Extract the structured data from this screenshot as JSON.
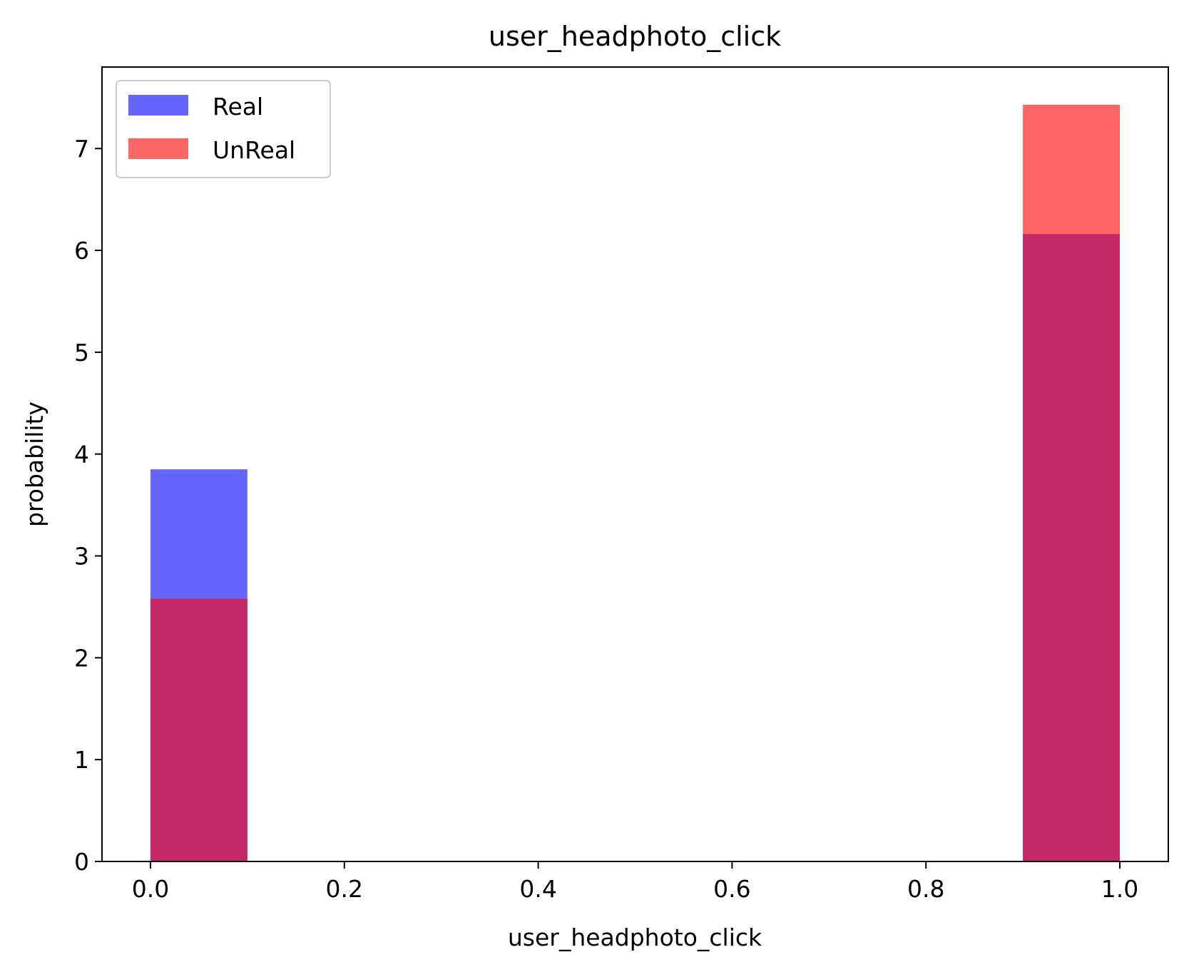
{
  "chart_data": {
    "type": "bar",
    "title": "user_headphoto_click",
    "xlabel": "user_headphoto_click",
    "ylabel": "probability",
    "xlim": [
      -0.05,
      1.05
    ],
    "ylim": [
      0,
      7.8
    ],
    "xticks": [
      "0.0",
      "0.2",
      "0.4",
      "0.6",
      "0.8",
      "1.0"
    ],
    "xtick_values": [
      0.0,
      0.2,
      0.4,
      0.6,
      0.8,
      1.0
    ],
    "yticks": [
      "0",
      "1",
      "2",
      "3",
      "4",
      "5",
      "6",
      "7"
    ],
    "ytick_values": [
      0,
      1,
      2,
      3,
      4,
      5,
      6,
      7
    ],
    "grid": false,
    "legend_position": "top-left",
    "series": [
      {
        "name": "Real",
        "color": "#0000ff",
        "opacity": 0.6,
        "bins": [
          {
            "x0": 0.0,
            "x1": 0.1,
            "value": 3.85
          },
          {
            "x0": 0.9,
            "x1": 1.0,
            "value": 6.16
          }
        ]
      },
      {
        "name": "UnReal",
        "color": "#ff0000",
        "opacity": 0.6,
        "bins": [
          {
            "x0": 0.0,
            "x1": 0.1,
            "value": 2.58
          },
          {
            "x0": 0.9,
            "x1": 1.0,
            "value": 7.43
          }
        ]
      }
    ]
  }
}
